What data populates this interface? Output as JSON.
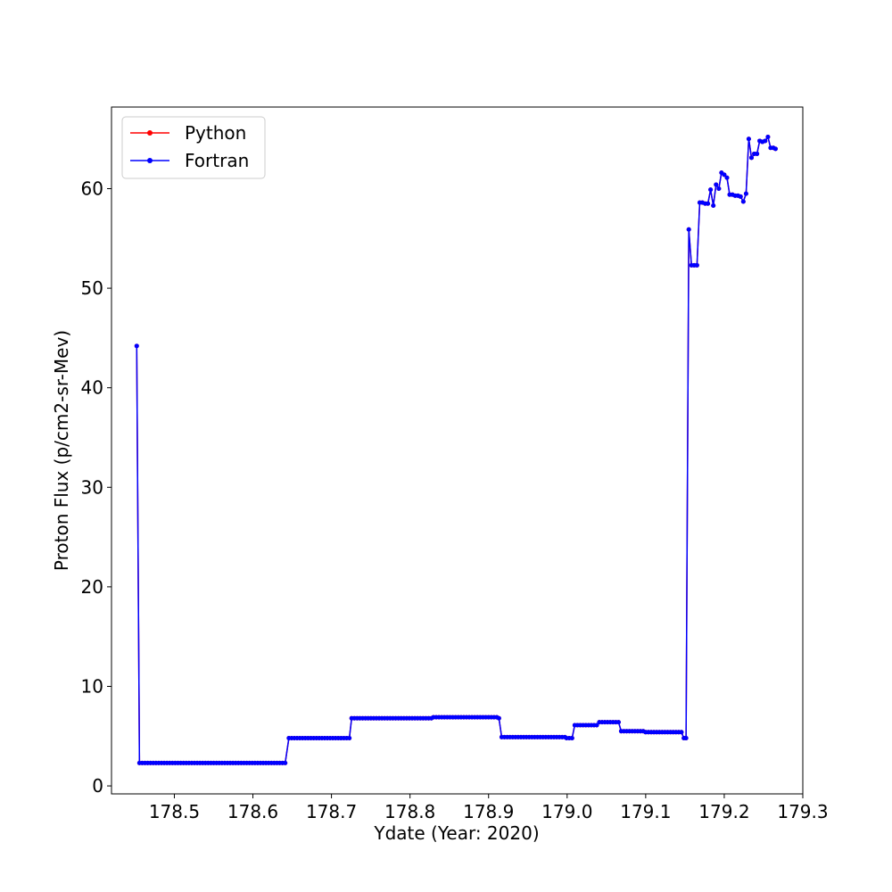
{
  "chart_data": {
    "type": "line",
    "xlabel": "Ydate (Year: 2020)",
    "ylabel": "Proton Flux (p/cm2-sr-Mev)",
    "xlim": [
      178.42,
      179.3
    ],
    "ylim": [
      -0.8,
      68.2
    ],
    "xticks": [
      "178.5",
      "178.6",
      "178.7",
      "178.8",
      "178.9",
      "179.0",
      "179.1",
      "179.2",
      "179.3"
    ],
    "yticks": [
      "0",
      "10",
      "20",
      "30",
      "40",
      "50",
      "60"
    ],
    "grid": false,
    "legend_position": "upper-left",
    "series": [
      {
        "name": "Python",
        "color": "#ff0000",
        "marker": "circle",
        "segments": [
          {
            "x": [
              178.4521
            ],
            "y": [
              44.2
            ]
          },
          {
            "x_start": 178.4556,
            "x_end": 178.6424,
            "step": 0.0035,
            "y": 2.3
          },
          {
            "x_start": 178.6458,
            "x_end": 178.7222,
            "step": 0.0035,
            "y": 4.8
          },
          {
            "x_start": 178.7257,
            "x_end": 178.8264,
            "step": 0.0035,
            "y": 6.8
          },
          {
            "x_start": 178.8299,
            "x_end": 178.9097,
            "step": 0.0035,
            "y": 6.9
          },
          {
            "x": [
              178.9132
            ],
            "y": [
              6.8
            ]
          },
          {
            "x_start": 178.9167,
            "x_end": 178.9965,
            "step": 0.0035,
            "y": 4.9
          },
          {
            "x": [
              178.9993,
              179.0028,
              179.0063
            ],
            "y": [
              4.8,
              4.8,
              4.8
            ]
          },
          {
            "x_start": 179.0097,
            "x_end": 179.0375,
            "step": 0.0035,
            "y": 6.1
          },
          {
            "x_start": 179.041,
            "x_end": 179.0653,
            "step": 0.0035,
            "y": 6.4
          },
          {
            "x_start": 179.0688,
            "x_end": 179.0965,
            "step": 0.0035,
            "y": 5.5
          },
          {
            "x_start": 179.1,
            "x_end": 179.1451,
            "step": 0.0035,
            "y": 5.4
          },
          {
            "x": [
              179.1486,
              179.1514,
              179.1549,
              179.1583,
              179.1618,
              179.1653,
              179.1688,
              179.1722,
              179.1757,
              179.1792,
              179.1826,
              179.1861,
              179.1896,
              179.1931,
              179.1965,
              179.2,
              179.2035,
              179.2069,
              179.2104,
              179.2139,
              179.2174,
              179.2208,
              179.2243,
              179.2278,
              179.2312,
              179.2347,
              179.2382,
              179.2417,
              179.2451,
              179.2486,
              179.2521,
              179.2556,
              179.259,
              179.2625,
              179.2653
            ],
            "y": [
              4.8,
              4.8,
              55.9,
              52.3,
              52.3,
              52.3,
              58.6,
              58.6,
              58.5,
              58.5,
              59.9,
              58.3,
              60.4,
              60.0,
              61.6,
              61.4,
              61.1,
              59.4,
              59.4,
              59.3,
              59.3,
              59.2,
              58.7,
              59.5,
              65.0,
              63.1,
              63.5,
              63.5,
              64.8,
              64.7,
              64.8,
              65.2,
              64.1,
              64.1,
              64.0
            ]
          }
        ]
      },
      {
        "name": "Fortran",
        "color": "#0000ff",
        "marker": "circle",
        "same_as": "Python"
      }
    ]
  }
}
